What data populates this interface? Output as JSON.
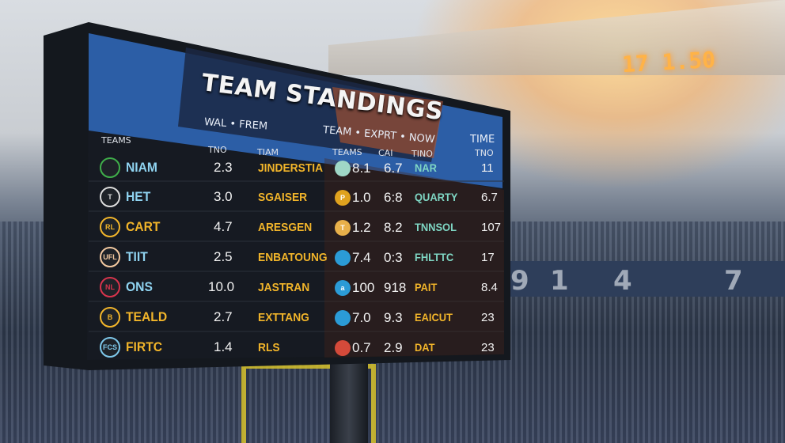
{
  "scoreboard": {
    "title": "TEAM STANDINGS",
    "subtitle_left": "WAL • FREM",
    "subtitle_right": "TEAM • EXPRT • NOW",
    "time_header": "TIME",
    "col_headers": {
      "teams": "TEAMS",
      "tno": "TNO",
      "tiam": "TIAM",
      "teams2": "TEAMS",
      "cai": "CAI",
      "tino": "TINO",
      "tno2": "TNO"
    },
    "rows": [
      {
        "logo": "",
        "logo_color": "#3fae4a",
        "team": "NIAM",
        "team_color": "#8fd3f0",
        "tno": "2.3",
        "tiam": "JINDERSTIA",
        "logo2": "",
        "logo2_color": "#9fd7c6",
        "v1": "8.1",
        "cai": "6.7",
        "tino": "NAR",
        "tino_color": "#7fd7c4",
        "tno2": "11"
      },
      {
        "logo": "T",
        "logo_color": "#dcdcdc",
        "team": "HET",
        "team_color": "#8fd3f0",
        "tno": "3.0",
        "tiam": "SGAISER",
        "logo2": "P",
        "logo2_color": "#e0a21e",
        "v1": "1.0",
        "cai": "6:8",
        "tino": "QUARTY",
        "tino_color": "#7fd7c4",
        "tno2": "6.7"
      },
      {
        "logo": "RL",
        "logo_color": "#f2b52a",
        "team": "CART",
        "team_color": "#f2b52a",
        "tno": "4.7",
        "tiam": "ARESGEN",
        "logo2": "T",
        "logo2_color": "#e8b04a",
        "v1": "1.2",
        "cai": "8.2",
        "tino": "TNNSOL",
        "tino_color": "#7fd7c4",
        "tno2": "107"
      },
      {
        "logo": "UFL",
        "logo_color": "#f3c9a0",
        "team": "TIIT",
        "team_color": "#8fd3f0",
        "tno": "2.5",
        "tiam": "ENBATOUNG",
        "logo2": "",
        "logo2_color": "#2b9bd6",
        "v1": "7.4",
        "cai": "0:3",
        "tino": "FHLTTC",
        "tino_color": "#7fd7c4",
        "tno2": "17"
      },
      {
        "logo": "NL",
        "logo_color": "#d8344c",
        "team": "ONS",
        "team_color": "#8fd3f0",
        "tno": "10.0",
        "tiam": "JASTRAN",
        "logo2": "a",
        "logo2_color": "#2b9bd6",
        "v1": "100",
        "cai": "918",
        "tino": "PAIT",
        "tino_color": "#f2b52a",
        "tno2": "8.4"
      },
      {
        "logo": "B",
        "logo_color": "#f2b52a",
        "team": "TEALD",
        "team_color": "#f2b52a",
        "tno": "2.7",
        "tiam": "EXTTANG",
        "logo2": "",
        "logo2_color": "#2b9bd6",
        "v1": "7.0",
        "cai": "9.3",
        "tino": "EAICUT",
        "tino_color": "#f2b52a",
        "tno2": "23"
      },
      {
        "logo": "FCS",
        "logo_color": "#7ec8ea",
        "team": "FIRTC",
        "team_color": "#f2b52a",
        "tno": "1.4",
        "tiam": "RLS",
        "logo2": "",
        "logo2_color": "#d44a3a",
        "v1": "0.7",
        "cai": "2.9",
        "tino": "DAT",
        "tino_color": "#f2b52a",
        "tno2": "23"
      }
    ]
  },
  "background": {
    "clock": "17 1.50",
    "seat_numbers": [
      "9",
      "1",
      "4",
      "7"
    ]
  }
}
